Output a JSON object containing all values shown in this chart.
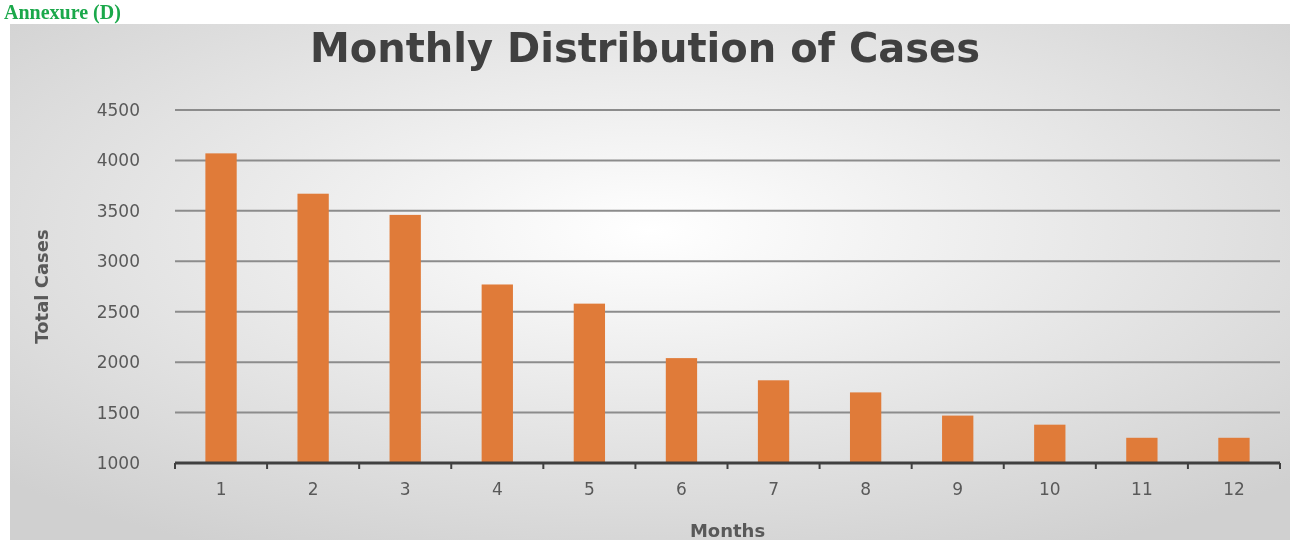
{
  "chart_data": {
    "type": "bar",
    "title": "Monthly Distribution of Cases",
    "xlabel": "Months",
    "ylabel": "Total Cases",
    "annotations": [
      "Annexure (D)"
    ],
    "categories": [
      "1",
      "2",
      "3",
      "4",
      "5",
      "6",
      "7",
      "8",
      "9",
      "10",
      "11",
      "12"
    ],
    "values": [
      4070,
      3670,
      3460,
      2770,
      2580,
      2040,
      1820,
      1700,
      1470,
      1380,
      1250,
      1250
    ],
    "color": "#e07b39",
    "ylim": [
      1000,
      4500
    ],
    "yticks": [
      1000,
      1500,
      2000,
      2500,
      3000,
      3500,
      4000,
      4500
    ],
    "grid": "y"
  }
}
